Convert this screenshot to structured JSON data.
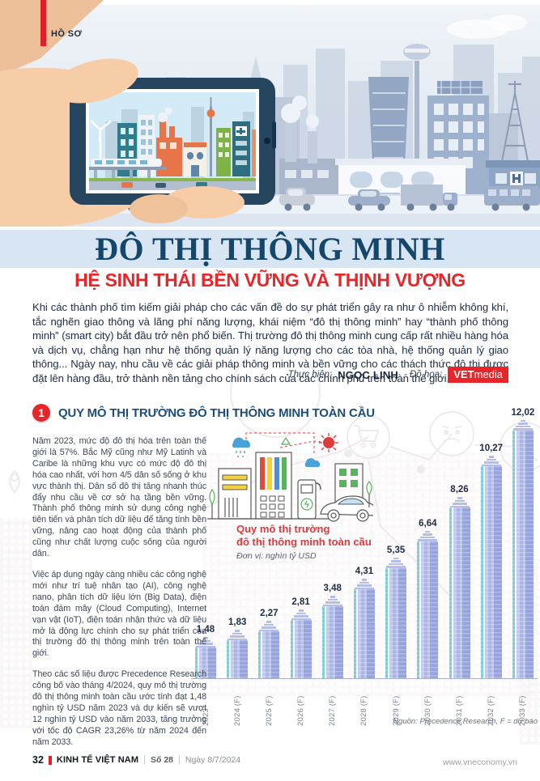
{
  "page": {
    "kicker": "HỒ SƠ",
    "title": "ĐÔ THỊ THÔNG MINH",
    "subtitle": "HỆ SINH THÁI BỀN VỮNG VÀ THỊNH VƯỢNG",
    "intro": "Khi các thành phố tìm kiếm giải pháp cho các vấn đề do sự phát triển gây ra như ô nhiễm không khí, tắc nghẽn giao thông và lãng phí năng lượng, khái niệm “đô thị thông minh” hay “thành phố thông minh” (smart city) bắt đầu trở nên phổ biến. Thị trường đô thị thông minh cung cấp rất nhiều hàng hóa và dịch vụ, chẳng hạn như hệ thống quản lý năng lượng cho các tòa nhà, hệ thống quản lý giao thông... Ngày nay, nhu cầu về các giải pháp thông minh và bền vững cho các thách thức đô thị được đặt lên hàng đầu, trở thành nền tảng cho chính sách của các chính phủ trên toàn thế giới.",
    "credit": {
      "label1": "Thực hiện:",
      "author": "NGỌC LINH",
      "label2": "- Đồ họa:",
      "brand_bold": "VET",
      "brand_light": "media"
    }
  },
  "section": {
    "number": "1",
    "title": "QUY MÔ THỊ TRƯỜNG ĐÔ THỊ THÔNG MINH TOÀN CẦU",
    "paragraphs": [
      "Năm 2023, mức độ đô thị hóa trên toàn thế giới là 57%. Bắc Mỹ cũng như Mỹ Latinh và Caribe là những khu vực có mức độ đô thị hóa cao nhất, với hơn 4/5 dân số sống ở khu vực thành thị. Dân số đô thị tăng nhanh thúc đẩy nhu cầu về cơ sở hạ tầng bền vững. Thành phố thông minh sử dụng công nghệ tiên tiến và phân tích dữ liệu để tăng tính bền vững, nâng cao hoạt động của thành phố cũng như chất lượng cuộc sống của người dân.",
      "Việc áp dụng ngày càng nhiều các công nghệ mới như trí tuệ nhân tạo (AI), công nghệ nano, phân tích dữ liệu lớn (Big Data), điện toán đám mây (Cloud Computing), Internet vạn vật (IoT), điện toán nhận thức và dữ liệu mở là động lực chính cho sự phát triển của thị trường đô thị thông minh trên toàn thế giới.",
      "Theo các số liệu được Precedence Research công bố vào tháng 4/2024, quy mô thị trường đô thị thông minh toàn cầu ước tính đạt 1,48 nghìn tỷ USD năm 2023 và dự kiến sẽ vượt 12 nghìn tỷ USD vào năm 2033, tăng trưởng với tốc độ CAGR 23,26% từ năm 2024 đến năm 2033."
    ]
  },
  "chart": {
    "title_line1": "Quy mô thị trường",
    "title_line2": "đô thị thông minh toàn cầu",
    "unit": "Đơn vị: nghìn tỷ USD",
    "source": "Nguồn: Precedence Research, F = dự báo"
  },
  "chart_data": {
    "type": "bar",
    "title": "Quy mô thị trường đô thị thông minh toàn cầu",
    "xlabel": "",
    "ylabel": "nghìn tỷ USD",
    "ylim": [
      0,
      12.5
    ],
    "grid": false,
    "legend_position": "none",
    "categories": [
      "2023",
      "2024 (F)",
      "2025 (F)",
      "2026 (F)",
      "2027 (F)",
      "2028 (F)",
      "2029 (F)",
      "2030 (F)",
      "2031 (F)",
      "2032 (F)",
      "2033 (F)"
    ],
    "values": [
      1.48,
      1.83,
      2.27,
      2.81,
      3.48,
      4.31,
      5.35,
      6.64,
      8.26,
      10.27,
      12.02
    ],
    "value_labels": [
      "1,48",
      "1,83",
      "2,27",
      "2,81",
      "3,48",
      "4,31",
      "5,35",
      "6,64",
      "8,26",
      "10,27",
      "12,02"
    ]
  },
  "icons": {
    "watermarks": [
      "shopping-cart-icon",
      "sad-face-icon",
      "person-icon",
      "location-pin-icon"
    ],
    "illustration": [
      "sun-icon",
      "cloud-icon",
      "rain-cloud-icon",
      "recycle-icon",
      "tree-icon",
      "ev-charging-station-icon",
      "smart-car-icon",
      "building-icon"
    ],
    "header": [
      "hand-icon",
      "smartphone-icon",
      "city-skyline",
      "hospital-icon",
      "factory-icon"
    ]
  },
  "colors": {
    "accent_red": "#e8262a",
    "title_navy": "#15466b",
    "band_blue": "#d8e5f3",
    "bar_periwinkle": "#a3aee2",
    "bar_teal": "#7ecbdb",
    "text_dark": "#1d2c49"
  },
  "footer": {
    "page_number": "32",
    "magazine": "KINH TẾ VIỆT NAM",
    "sep": "|",
    "issue": "Số 28",
    "date": "Ngày 8/7/2024",
    "website": "www.vneconomy.vn"
  }
}
